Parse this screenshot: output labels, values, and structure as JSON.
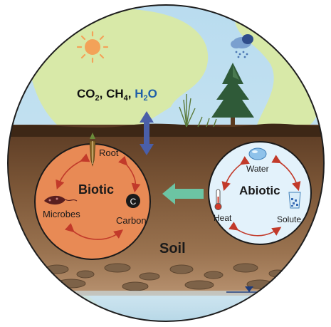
{
  "atmosphere": {
    "gas_1": "CO",
    "gas_1_sub": "2",
    "gas_2": "CH",
    "gas_2_sub": "4",
    "gas_3": "H",
    "gas_3_sub": "2",
    "gas_3_end": "O",
    "separator": ", ",
    "water_color": "#1f5fa8"
  },
  "biotic": {
    "title": "Biotic",
    "root": "Root",
    "microbes": "Microbes",
    "carbon": "Carbon",
    "carbon_symbol": "C",
    "fill_color": "#e88a55"
  },
  "abiotic": {
    "title": "Abiotic",
    "water": "Water",
    "heat": "Heat",
    "solute": "Solute",
    "fill_color": "#e3f2fb"
  },
  "soil": {
    "label": "Soil"
  },
  "colors": {
    "exchange_arrow": "#4a5fa8",
    "influence_arrow": "#6cc4a3",
    "cycle_arrow": "#c23a2a"
  },
  "icons": [
    "sun-icon",
    "rain-cloud-icon",
    "pine-tree-icon",
    "grass-icon",
    "root-icon",
    "microbe-icon",
    "carbon-icon",
    "water-drop-icon",
    "thermometer-icon",
    "solute-beaker-icon",
    "water-table-icon"
  ]
}
